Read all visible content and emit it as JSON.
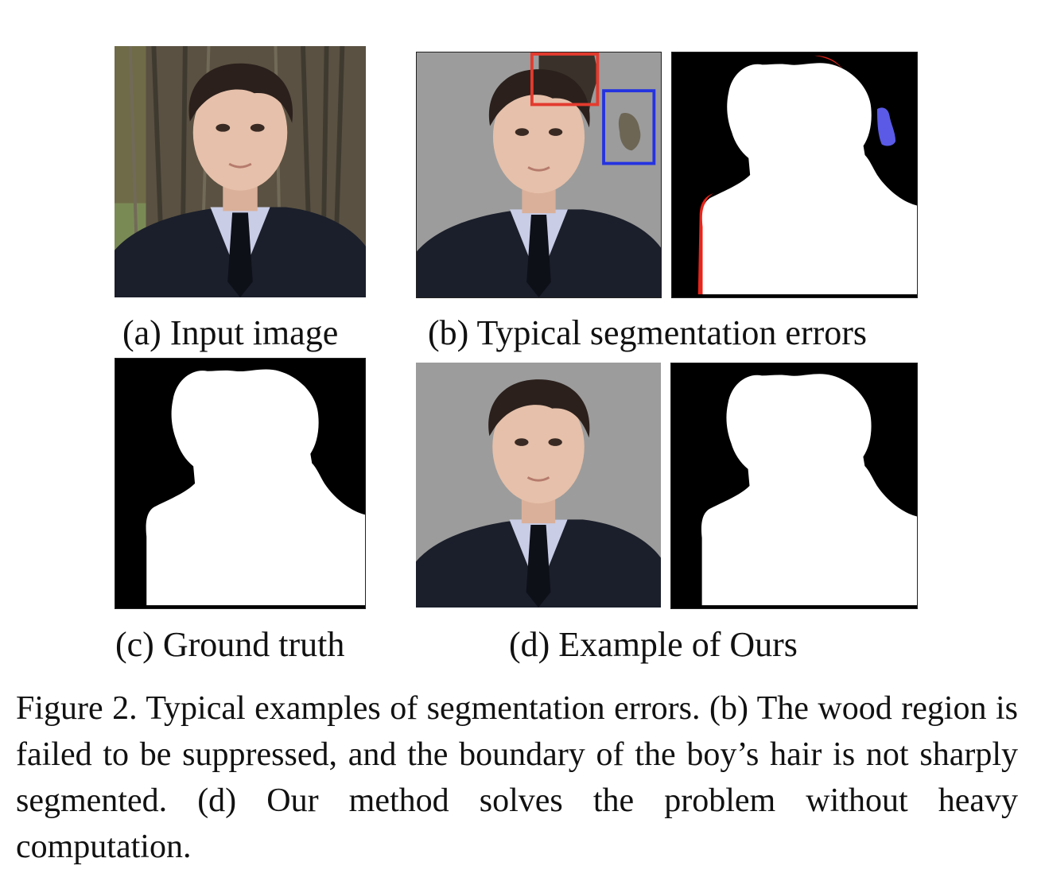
{
  "figure": {
    "panels": {
      "a": {
        "label": "(a) Input image"
      },
      "b": {
        "label": "(b) Typical segmentation errors"
      },
      "c": {
        "label": "(c) Ground truth"
      },
      "d": {
        "label": "(d) Example of Ours"
      }
    },
    "caption": "Figure 2. Typical examples of segmentation errors. (b) The wood region is failed to be suppressed, and the boundary of the boy’s hair is not sharply segmented. (d) Our method solves the problem without heavy computation.",
    "colors": {
      "mask_background": "#000000",
      "mask_foreground": "#ffffff",
      "matte_background": "#9c9c9c",
      "error_hair_box": "#e33b2e",
      "error_wood_box": "#2433e0",
      "error_hair_region": "#e8251b",
      "error_wood_region": "#5a5ae6"
    }
  }
}
